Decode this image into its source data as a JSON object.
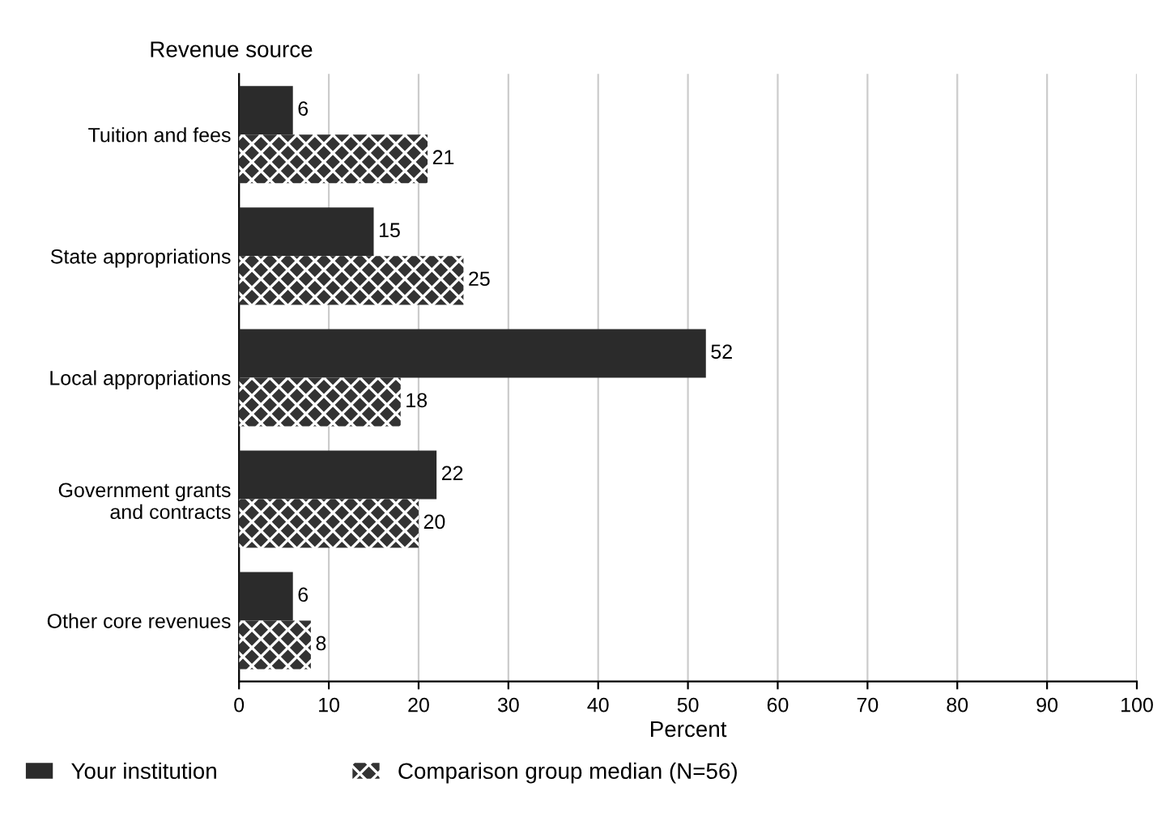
{
  "chart_data": {
    "type": "bar",
    "orientation": "horizontal",
    "ylabel": "Revenue source",
    "xlabel": "Percent",
    "categories": [
      "Tuition and fees",
      "State appropriations",
      "Local appropriations",
      "Government grants\nand contracts",
      "Other core revenues"
    ],
    "series": [
      {
        "name": "Your institution",
        "color": "#2b2b2b",
        "values": [
          6,
          15,
          52,
          22,
          6
        ]
      },
      {
        "name": "Comparison group median (N=56)",
        "color": "#333333",
        "values": [
          21,
          25,
          18,
          20,
          8
        ]
      }
    ],
    "xlim": [
      0,
      100
    ],
    "xticks": [
      0,
      10,
      20,
      30,
      40,
      50,
      60,
      70,
      80,
      90,
      100
    ],
    "grid": "x",
    "legend": "bottom",
    "data_labels": true
  }
}
